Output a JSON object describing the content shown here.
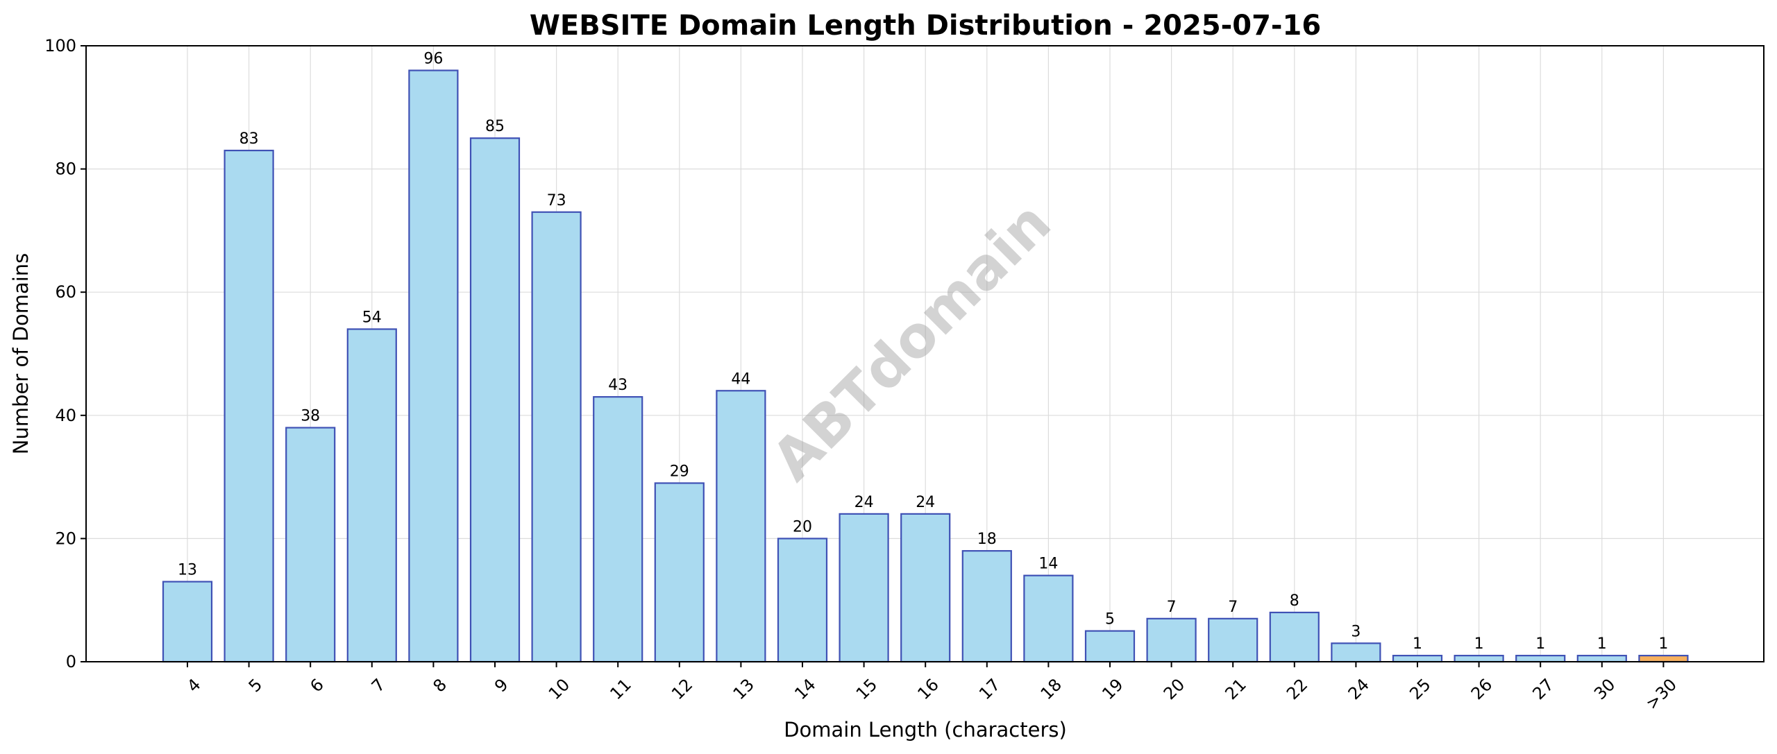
{
  "chart_data": {
    "type": "bar",
    "title": "WEBSITE Domain Length Distribution - 2025-07-16",
    "xlabel": "Domain Length (characters)",
    "ylabel": "Number of Domains",
    "categories": [
      "4",
      "5",
      "6",
      "7",
      "8",
      "9",
      "10",
      "11",
      "12",
      "13",
      "14",
      "15",
      "16",
      "17",
      "18",
      "19",
      "20",
      "21",
      "22",
      "24",
      "25",
      "26",
      "27",
      "30",
      ">30"
    ],
    "values": [
      13,
      83,
      38,
      54,
      96,
      85,
      73,
      43,
      29,
      44,
      20,
      24,
      24,
      18,
      14,
      5,
      7,
      7,
      8,
      3,
      1,
      1,
      1,
      1,
      1
    ],
    "ylim": [
      0,
      100
    ],
    "yticks": [
      0,
      20,
      40,
      60,
      80,
      100
    ],
    "grid": true,
    "legend": "none",
    "colors": {
      "bar_fill": "#aadaf0",
      "bar_edge": "#3f51b5",
      "highlight_fill": "#f7b05c",
      "highlight_category": ">30"
    },
    "watermark": "ABTdomain"
  }
}
